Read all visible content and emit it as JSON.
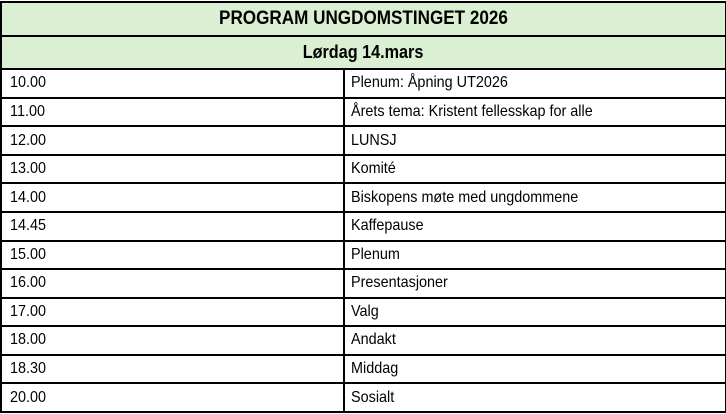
{
  "table": {
    "title": "PROGRAM UNGDOMSTINGET 2026",
    "subtitle": "Lørdag 14.mars",
    "rows": [
      {
        "time": "10.00",
        "activity": "Plenum: Åpning UT2026"
      },
      {
        "time": "11.00",
        "activity": "Årets tema: Kristent fellesskap for alle"
      },
      {
        "time": "12.00",
        "activity": "LUNSJ"
      },
      {
        "time": "13.00",
        "activity": "Komité"
      },
      {
        "time": "14.00",
        "activity": "Biskopens møte med ungdommene"
      },
      {
        "time": "14.45",
        "activity": "Kaffepause"
      },
      {
        "time": "15.00",
        "activity": "Plenum"
      },
      {
        "time": "16.00",
        "activity": "Presentasjoner"
      },
      {
        "time": "17.00",
        "activity": "Valg"
      },
      {
        "time": "18.00",
        "activity": "Andakt"
      },
      {
        "time": "18.30",
        "activity": "Middag"
      },
      {
        "time": "20.00",
        "activity": "Sosialt"
      }
    ]
  },
  "colors": {
    "header_bg": "#DBF0D3",
    "border": "#000000",
    "row_bg": "#FFFFFF",
    "text": "#000000"
  }
}
